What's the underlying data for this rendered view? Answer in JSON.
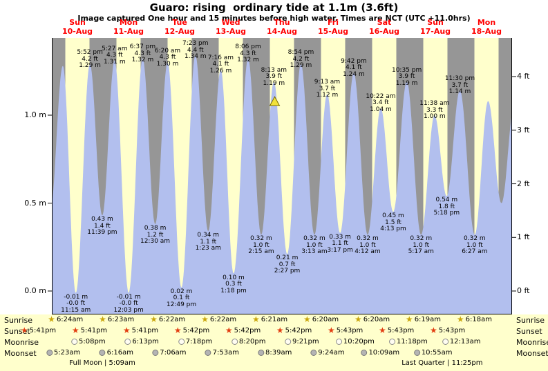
{
  "title": "Guaro: rising  ordinary tide at 1.1m (3.6ft)",
  "subtitle": "Image captured One hour and 15 minutes before high water. Times are NCT (UTC +11.0hrs)",
  "days": [
    {
      "name": "Sun",
      "date": "10-Aug"
    },
    {
      "name": "Mon",
      "date": "11-Aug"
    },
    {
      "name": "Tue",
      "date": "12-Aug"
    },
    {
      "name": "Wed",
      "date": "13-Aug"
    },
    {
      "name": "Thu",
      "date": "14-Aug"
    },
    {
      "name": "Fri",
      "date": "15-Aug"
    },
    {
      "name": "Sat",
      "date": "16-Aug"
    },
    {
      "name": "Sun",
      "date": "17-Aug"
    },
    {
      "name": "Mon",
      "date": "18-Aug"
    }
  ],
  "colors": {
    "day_band": "#ffffcc",
    "night_band": "#969696",
    "tide_fill": "#b2bfee",
    "header_red": "#ff0000",
    "marker_fill": "#f2e23a",
    "marker_stroke": "#7a6e00"
  },
  "chart_data": {
    "type": "area",
    "title": "Guaro: rising ordinary tide at 1.1m (3.6ft)",
    "current_state": {
      "trend": "rising",
      "tide_type": "ordinary",
      "height_m": 1.1,
      "height_ft": 3.6
    },
    "x_unit": "hours from Sun 10-Aug 00:00",
    "x_range_hours": [
      0,
      216
    ],
    "ylim_m": [
      -0.13,
      1.44
    ],
    "y_axis_left": [
      {
        "label": "1.0 m",
        "v": 1.0
      },
      {
        "label": "0.5 m",
        "v": 0.5
      },
      {
        "label": "0.0 m",
        "v": 0.0
      }
    ],
    "y_axis_right": [
      {
        "label": "4 ft",
        "v_ft": 4
      },
      {
        "label": "3 ft",
        "v_ft": 3
      },
      {
        "label": "2 ft",
        "v_ft": 2
      },
      {
        "label": "1 ft",
        "v_ft": 1
      },
      {
        "label": "0 ft",
        "v_ft": 0
      }
    ],
    "extremes": [
      {
        "t": -0.8,
        "v": 0.45,
        "type": "low"
      },
      {
        "t": 5.17,
        "v": 1.28,
        "type": "high"
      },
      {
        "t": 11.25,
        "v": -0.01,
        "type": "low",
        "lines": [
          "-0.01 m",
          "-0.0 ft",
          "11:15 am"
        ]
      },
      {
        "t": 17.87,
        "v": 1.29,
        "type": "high",
        "lines": [
          "5:52 pm",
          "4.2 ft",
          "1.29 m"
        ]
      },
      {
        "t": 23.65,
        "v": 0.43,
        "type": "low",
        "lines": [
          "0.43 m",
          "1.4 ft",
          "11:39 pm"
        ]
      },
      {
        "t": 29.45,
        "v": 1.31,
        "type": "high",
        "lines": [
          "5:27 am",
          "4.3 ft",
          "1.31 m"
        ]
      },
      {
        "t": 36.05,
        "v": -0.01,
        "type": "low",
        "lines": [
          "-0.01 m",
          "-0.0 ft",
          "12:03 pm"
        ]
      },
      {
        "t": 42.62,
        "v": 1.32,
        "type": "high",
        "lines": [
          "6:37 pm",
          "4.3 ft",
          "1.32 m"
        ]
      },
      {
        "t": 48.5,
        "v": 0.38,
        "type": "low",
        "lines": [
          "0.38 m",
          "1.2 ft",
          "12:30 am"
        ]
      },
      {
        "t": 54.33,
        "v": 1.3,
        "type": "high",
        "lines": [
          "6:20 am",
          "4.3 ft",
          "1.30 m"
        ]
      },
      {
        "t": 60.82,
        "v": 0.02,
        "type": "low",
        "lines": [
          "0.02 m",
          "0.1 ft",
          "12:49 pm"
        ]
      },
      {
        "t": 67.38,
        "v": 1.34,
        "type": "high",
        "lines": [
          "7:23 pm",
          "4.4 ft",
          "1.34 m"
        ]
      },
      {
        "t": 73.38,
        "v": 0.34,
        "type": "low",
        "lines": [
          "0.34 m",
          "1.1 ft",
          "1:23 am"
        ]
      },
      {
        "t": 79.27,
        "v": 1.26,
        "type": "high",
        "lines": [
          "7:16 am",
          "4.1 ft",
          "1.26 m"
        ]
      },
      {
        "t": 85.3,
        "v": 0.1,
        "type": "low",
        "lines": [
          "0.10 m",
          "0.3 ft",
          "1:18 pm"
        ]
      },
      {
        "t": 92.1,
        "v": 1.32,
        "type": "high",
        "lines": [
          "8:06 pm",
          "4.3 ft",
          "1.32 m"
        ]
      },
      {
        "t": 98.25,
        "v": 0.32,
        "type": "low",
        "lines": [
          "0.32 m",
          "1.0 ft",
          "2:15 am"
        ]
      },
      {
        "t": 104.22,
        "v": 1.19,
        "type": "high",
        "lines": [
          "8:13 am",
          "3.9 ft",
          "1.19 m"
        ]
      },
      {
        "t": 110.45,
        "v": 0.21,
        "type": "low",
        "lines": [
          "0.21 m",
          "0.7 ft",
          "2:27 pm"
        ]
      },
      {
        "t": 116.9,
        "v": 1.29,
        "type": "high",
        "lines": [
          "8:54 pm",
          "4.2 ft",
          "1.29 m"
        ]
      },
      {
        "t": 123.22,
        "v": 0.32,
        "type": "low",
        "lines": [
          "0.32 m",
          "1.0 ft",
          "3:13 am"
        ]
      },
      {
        "t": 129.22,
        "v": 1.12,
        "type": "high",
        "lines": [
          "9:13 am",
          "3.7 ft",
          "1.12 m"
        ]
      },
      {
        "t": 135.28,
        "v": 0.33,
        "type": "low",
        "lines": [
          "0.33 m",
          "1.1 ft",
          "3:17 pm"
        ]
      },
      {
        "t": 141.7,
        "v": 1.24,
        "type": "high",
        "lines": [
          "9:42 pm",
          "4.1 ft",
          "1.24 m"
        ]
      },
      {
        "t": 148.2,
        "v": 0.32,
        "type": "low",
        "lines": [
          "0.32 m",
          "1.0 ft",
          "4:12 am"
        ]
      },
      {
        "t": 154.37,
        "v": 1.04,
        "type": "high",
        "lines": [
          "10:22 am",
          "3.4 ft",
          "1.04 m"
        ]
      },
      {
        "t": 160.22,
        "v": 0.45,
        "type": "low",
        "lines": [
          "0.45 m",
          "1.5 ft",
          "4:13 pm"
        ]
      },
      {
        "t": 166.58,
        "v": 1.19,
        "type": "high",
        "lines": [
          "10:35 pm",
          "3.9 ft",
          "1.19 m"
        ]
      },
      {
        "t": 173.28,
        "v": 0.32,
        "type": "low",
        "lines": [
          "0.32 m",
          "1.0 ft",
          "5:17 am"
        ]
      },
      {
        "t": 179.63,
        "v": 1.0,
        "type": "high",
        "lines": [
          "11:38 am",
          "3.3 ft",
          "1.00 m"
        ]
      },
      {
        "t": 185.3,
        "v": 0.54,
        "type": "low",
        "lines": [
          "0.54 m",
          "1.8 ft",
          "5:18 pm"
        ]
      },
      {
        "t": 191.5,
        "v": 1.14,
        "type": "high",
        "lines": [
          "11:30 pm",
          "3.7 ft",
          "1.14 m"
        ]
      },
      {
        "t": 198.45,
        "v": 0.32,
        "type": "low",
        "lines": [
          "0.32 m",
          "1.0 ft",
          "6:27 am"
        ]
      },
      {
        "t": 204.75,
        "v": 1.08,
        "type": "high"
      },
      {
        "t": 211.0,
        "v": 0.5,
        "type": "low"
      },
      {
        "t": 217.0,
        "v": 1.05,
        "type": "high"
      }
    ],
    "marker": {
      "t": 104.6,
      "v": 1.105,
      "shape": "triangle-up"
    }
  },
  "astro": {
    "rows": [
      {
        "label": "Sunrise",
        "icon": "sunrise-star-icon",
        "entries": [
          {
            "t": 6.4,
            "time": "6:24am"
          },
          {
            "t": 30.383,
            "time": "6:23am"
          },
          {
            "t": 54.367,
            "time": "6:22am"
          },
          {
            "t": 78.367,
            "time": "6:22am"
          },
          {
            "t": 102.35,
            "time": "6:21am"
          },
          {
            "t": 126.333,
            "time": "6:20am"
          },
          {
            "t": 150.333,
            "time": "6:20am"
          },
          {
            "t": 174.317,
            "time": "6:19am"
          },
          {
            "t": 198.3,
            "time": "6:18am"
          }
        ]
      },
      {
        "label": "Sunset",
        "icon": "sunset-star-icon",
        "entries": [
          {
            "t": -6.317,
            "time": "5:41pm"
          },
          {
            "t": 17.683,
            "time": "5:41pm"
          },
          {
            "t": 41.683,
            "time": "5:41pm"
          },
          {
            "t": 65.7,
            "time": "5:42pm"
          },
          {
            "t": 89.7,
            "time": "5:42pm"
          },
          {
            "t": 113.7,
            "time": "5:42pm"
          },
          {
            "t": 137.717,
            "time": "5:43pm"
          },
          {
            "t": 161.717,
            "time": "5:43pm"
          },
          {
            "t": 185.717,
            "time": "5:43pm"
          }
        ]
      },
      {
        "label": "Moonrise",
        "icon": "moonrise-icon",
        "entries": [
          {
            "t": 17.133,
            "time": "5:08pm"
          },
          {
            "t": 42.217,
            "time": "6:13pm"
          },
          {
            "t": 67.3,
            "time": "7:18pm"
          },
          {
            "t": 92.333,
            "time": "8:20pm"
          },
          {
            "t": 117.35,
            "time": "9:21pm"
          },
          {
            "t": 142.333,
            "time": "10:20pm"
          },
          {
            "t": 167.3,
            "time": "11:18pm"
          },
          {
            "t": 192.217,
            "time": "12:13am"
          }
        ]
      },
      {
        "label": "Moonset",
        "icon": "moonset-icon",
        "entries": [
          {
            "t": 5.383,
            "time": "5:23am"
          },
          {
            "t": 30.267,
            "time": "6:16am"
          },
          {
            "t": 55.1,
            "time": "7:06am"
          },
          {
            "t": 79.883,
            "time": "7:53am"
          },
          {
            "t": 104.65,
            "time": "8:39am"
          },
          {
            "t": 129.4,
            "time": "9:24am"
          },
          {
            "t": 154.15,
            "time": "10:09am"
          },
          {
            "t": 178.917,
            "time": "10:55am"
          }
        ]
      }
    ],
    "notes": [
      {
        "t": 23.7,
        "text": "Full Moon | 5:09am"
      },
      {
        "t": 183.2,
        "text": "Last Quarter | 11:25pm"
      }
    ]
  }
}
